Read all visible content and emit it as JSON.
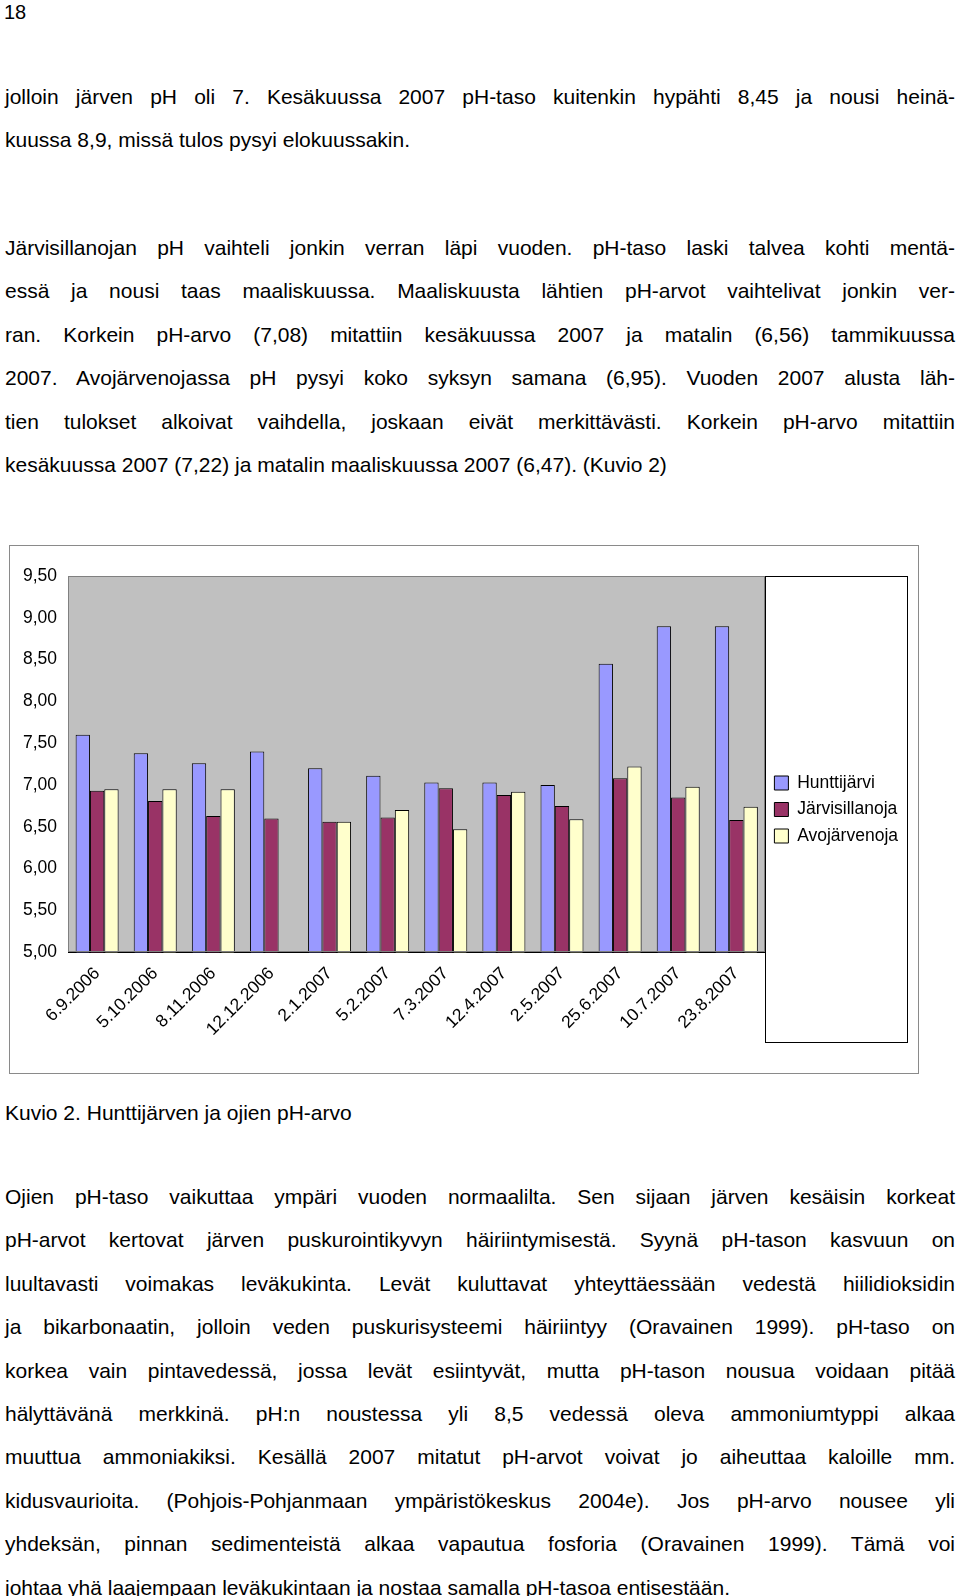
{
  "page_number": "18",
  "text_before": [
    [
      "jolloin järven pH oli 7. Kesäkuussa 2007 pH-taso kuitenkin hypähti 8,45 ja nousi heinä-",
      "kuussa 8,9, missä tulos pysyi elokuussakin."
    ],
    [
      "Järvisillanojan pH vaihteli jonkin verran läpi vuoden. pH-taso laski talvea kohti mentä-",
      "essä ja nousi taas maaliskuussa. Maaliskuusta lähtien pH-arvot vaihtelivat jonkin ver-",
      "ran. Korkein pH-arvo (7,08) mitattiin kesäkuussa 2007 ja matalin (6,56) tammikuussa",
      "2007. Avojärvenojassa pH pysyi koko syksyn samana (6,95). Vuoden 2007 alusta läh-",
      "tien tulokset alkoivat vaihdella, joskaan eivät merkittävästi. Korkein pH-arvo mitattiin",
      "kesäkuussa 2007 (7,22) ja matalin maaliskuussa 2007 (6,47). (Kuvio 2)"
    ]
  ],
  "chart_data": {
    "type": "bar",
    "categories": [
      "6.9.2006",
      "5.10.2006",
      "8.11.2006",
      "12.12.2006",
      "2.1.2007",
      "5.2.2007",
      "7.3.2007",
      "12.4.2007",
      "2.5.2007",
      "25.6.2007",
      "10.7.2007",
      "23.8.2007"
    ],
    "series": [
      {
        "name": "Hunttijärvi",
        "color": "#9999ff",
        "values": [
          7.6,
          7.38,
          7.26,
          7.4,
          7.2,
          7.11,
          7.03,
          7.03,
          7.0,
          8.45,
          8.9,
          8.9
        ]
      },
      {
        "name": "Järvisillanoja",
        "color": "#993366",
        "values": [
          6.93,
          6.81,
          6.63,
          6.6,
          6.56,
          6.61,
          6.96,
          6.88,
          6.75,
          7.08,
          6.85,
          6.58
        ]
      },
      {
        "name": "Avojärvenoja",
        "color": "#ffffcc",
        "values": [
          6.95,
          6.95,
          6.95,
          null,
          6.56,
          6.7,
          6.47,
          6.92,
          6.59,
          7.22,
          6.98,
          6.74
        ]
      }
    ],
    "ylim": [
      5.0,
      9.5
    ],
    "yticks": [
      {
        "value": 5.0,
        "label": "5,00"
      },
      {
        "value": 5.5,
        "label": "5,50"
      },
      {
        "value": 6.0,
        "label": "6,00"
      },
      {
        "value": 6.5,
        "label": "6,50"
      },
      {
        "value": 7.0,
        "label": "7,00"
      },
      {
        "value": 7.5,
        "label": "7,50"
      },
      {
        "value": 8.0,
        "label": "8,00"
      },
      {
        "value": 8.5,
        "label": "8,50"
      },
      {
        "value": 9.0,
        "label": "9,00"
      },
      {
        "value": 9.5,
        "label": "9,50"
      }
    ],
    "grid": false,
    "legend": "right"
  },
  "caption": "Kuvio 2. Hunttijärven ja ojien pH-arvo",
  "text_after": [
    [
      "Ojien pH-taso vaikuttaa ympäri vuoden normaalilta. Sen sijaan järven kesäisin korkeat",
      "pH-arvot kertovat järven puskurointikyvyn häiriintymisestä. Syynä pH-tason kasvuun on",
      "luultavasti voimakas leväkukinta. Levät kuluttavat yhteyttäessään vedestä hiilidioksidin",
      "ja bikarbonaatin, jolloin veden puskurisysteemi häiriintyy (Oravainen 1999). pH-taso on",
      "korkea vain pintavedessä, jossa levät esiintyvät, mutta pH-tason nousua voidaan pitää",
      "hälyttävänä merkkinä. pH:n noustessa yli 8,5 vedessä oleva ammoniumtyppi alkaa",
      "muuttua ammoniakiksi. Kesällä 2007 mitatut pH-arvot voivat jo aiheuttaa kaloille mm.",
      "kidusvaurioita. (Pohjois-Pohjanmaan ympäristökeskus 2004e). Jos pH-arvo nousee yli",
      "yhdeksän, pinnan sedimenteistä alkaa vapautua fosforia (Oravainen 1999). Tämä voi",
      "johtaa yhä laajempaan leväkukintaan ja nostaa samalla pH-tasoa entisestään."
    ]
  ]
}
